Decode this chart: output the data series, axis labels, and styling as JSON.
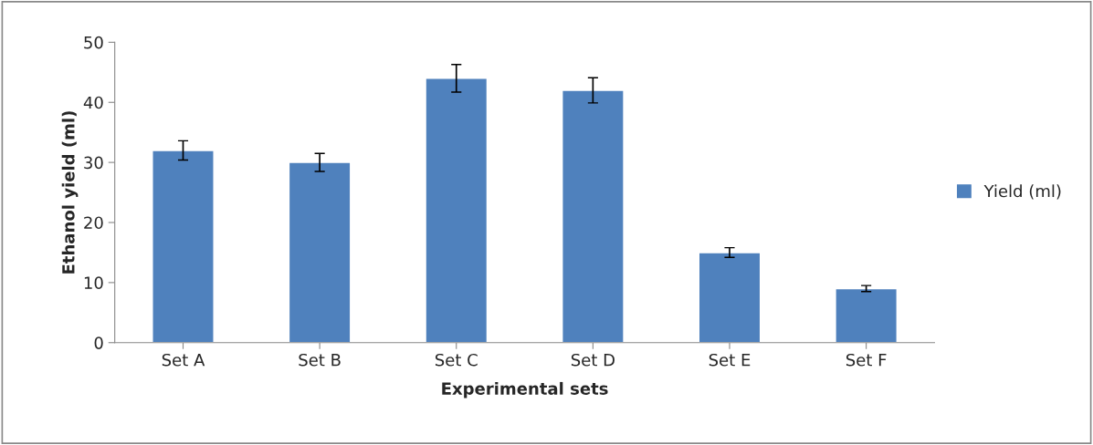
{
  "chart_data": {
    "type": "bar",
    "xlabel": "Experimental sets",
    "ylabel": "Ethanol yield (ml)",
    "categories": [
      "Set A",
      "Set B",
      "Set C",
      "Set D",
      "Set E",
      "Set F"
    ],
    "series": [
      {
        "name": "Yield (ml)",
        "color": "#4f81bd",
        "values": [
          32,
          30,
          44,
          42,
          15,
          9
        ],
        "errors": [
          1.6,
          1.5,
          2.3,
          2.1,
          0.8,
          0.5
        ]
      }
    ],
    "ylim": [
      0,
      50
    ],
    "yticks": [
      0,
      10,
      20,
      30,
      40,
      50
    ],
    "grid": false,
    "legend": "right"
  }
}
